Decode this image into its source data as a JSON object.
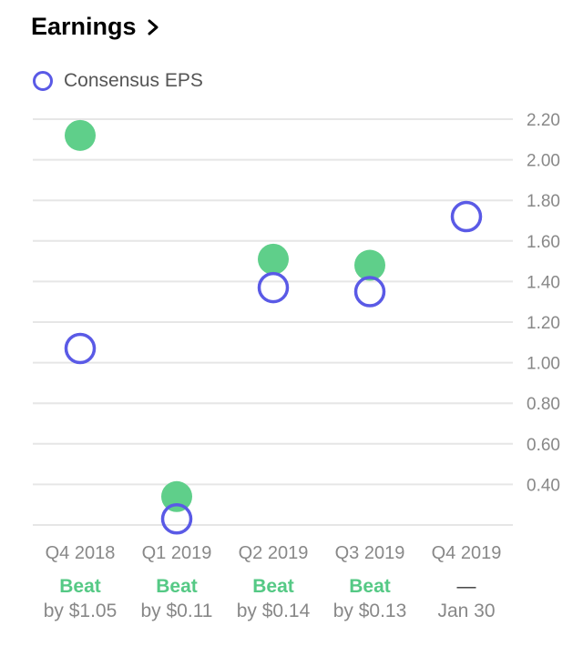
{
  "header": {
    "title": "Earnings",
    "chevron_icon": "chevron-right-icon"
  },
  "legend": {
    "label": "Consensus EPS"
  },
  "colors": {
    "actual": "#5fcf8a",
    "estimate": "#5a5ae6",
    "beat": "#55c985",
    "grid": "#e6e6e6"
  },
  "chart_data": {
    "type": "scatter",
    "title": "Earnings",
    "categories": [
      "Q4 2018",
      "Q1 2019",
      "Q2 2019",
      "Q3 2019",
      "Q4 2019"
    ],
    "series": [
      {
        "name": "Consensus EPS",
        "values": [
          1.07,
          0.23,
          1.37,
          1.35,
          1.72
        ]
      },
      {
        "values": [
          2.12,
          0.34,
          1.51,
          1.48,
          null
        ]
      }
    ],
    "y_ticks": [
      "2.20",
      "2.00",
      "1.80",
      "1.60",
      "1.40",
      "1.20",
      "1.00",
      "0.80",
      "0.60",
      "0.40"
    ],
    "ylim": [
      0.2,
      2.2
    ],
    "grid": true,
    "legend_position": "top-left",
    "results": [
      {
        "status": "Beat",
        "detail": "by $1.05"
      },
      {
        "status": "Beat",
        "detail": "by $0.11"
      },
      {
        "status": "Beat",
        "detail": "by $0.14"
      },
      {
        "status": "Beat",
        "detail": "by $0.13"
      },
      {
        "status": "—",
        "detail": "Jan 30"
      }
    ]
  }
}
